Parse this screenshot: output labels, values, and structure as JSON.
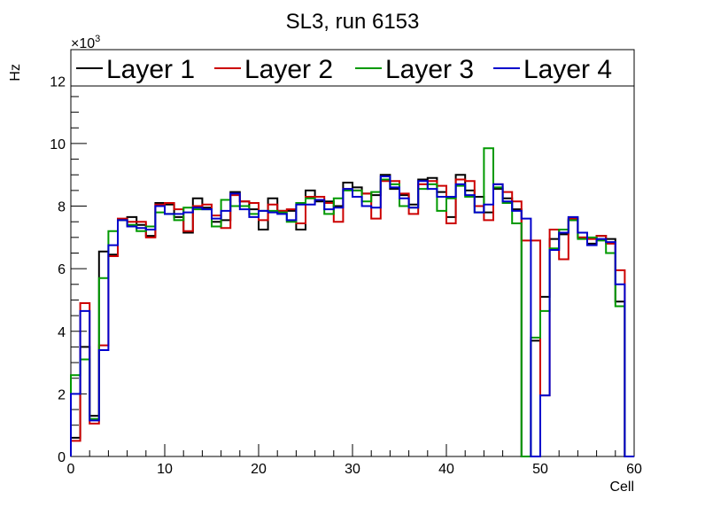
{
  "chart_data": {
    "type": "histogram-step",
    "title": "SL3, run 6153",
    "xlabel": "Cell",
    "ylabel": "Hz",
    "y_exponent_label": "×10",
    "y_exponent_power": "3",
    "xlim": [
      0,
      60
    ],
    "ylim": [
      0,
      13000
    ],
    "x_ticks": [
      0,
      10,
      20,
      30,
      40,
      50,
      60
    ],
    "x_tick_labels": [
      "0",
      "10",
      "20",
      "30",
      "40",
      "50",
      "60"
    ],
    "y_ticks": [
      0,
      2000,
      4000,
      6000,
      8000,
      10000,
      12000
    ],
    "y_tick_labels": [
      "0",
      "2",
      "4",
      "6",
      "8",
      "10",
      "12"
    ],
    "legend_position": "top",
    "series": [
      {
        "name": "Layer 1",
        "color": "#000000",
        "values": [
          600,
          3500,
          1300,
          6550,
          6450,
          7550,
          7650,
          7400,
          7050,
          8100,
          8050,
          7650,
          7150,
          8250,
          7950,
          7500,
          7550,
          8450,
          8150,
          7900,
          7250,
          8250,
          7850,
          7850,
          7250,
          8500,
          8150,
          8150,
          8000,
          8750,
          8600,
          8400,
          8350,
          9000,
          8550,
          8350,
          8050,
          8850,
          8900,
          8450,
          7650,
          9000,
          8500,
          8300,
          7800,
          8550,
          8250,
          7900,
          0,
          3700,
          5100,
          6950,
          7100,
          7550,
          7000,
          6800,
          7050,
          6950,
          4950,
          0
        ]
      },
      {
        "name": "Layer 2",
        "color": "#cc0000",
        "values": [
          500,
          4900,
          1050,
          3550,
          6400,
          7600,
          7500,
          7500,
          7000,
          8050,
          8100,
          7900,
          7200,
          8000,
          8050,
          7700,
          7300,
          8350,
          8150,
          8100,
          7550,
          8050,
          7850,
          7900,
          7450,
          8300,
          8300,
          8100,
          7500,
          8550,
          8500,
          8400,
          7600,
          8800,
          8800,
          8400,
          7750,
          8700,
          8800,
          8650,
          7450,
          8850,
          8800,
          8000,
          7550,
          8700,
          8450,
          8150,
          6900,
          6900,
          1950,
          7250,
          6300,
          7600,
          7000,
          6950,
          7050,
          6800,
          5950,
          0
        ]
      },
      {
        "name": "Layer 3",
        "color": "#009900",
        "values": [
          2600,
          3100,
          1200,
          5700,
          7200,
          7550,
          7400,
          7200,
          7350,
          7800,
          7750,
          7550,
          7950,
          7900,
          7900,
          7350,
          8200,
          8000,
          8000,
          7750,
          7850,
          7850,
          7800,
          7500,
          8100,
          8250,
          8200,
          7750,
          8250,
          8500,
          8500,
          8150,
          8450,
          8850,
          8700,
          8000,
          7950,
          8550,
          8700,
          7850,
          8250,
          8650,
          8300,
          7800,
          9850,
          8600,
          8100,
          7450,
          0,
          3800,
          4650,
          6650,
          7250,
          7550,
          6950,
          7000,
          6900,
          6500,
          4800,
          0
        ]
      },
      {
        "name": "Layer 4",
        "color": "#0000cc",
        "values": [
          2000,
          4650,
          1150,
          3400,
          6750,
          7550,
          7350,
          7300,
          7250,
          8000,
          7750,
          7750,
          7800,
          7950,
          7900,
          7600,
          7850,
          8400,
          7900,
          7650,
          7850,
          7800,
          7750,
          7550,
          8050,
          8050,
          8200,
          7900,
          7950,
          8550,
          8300,
          8000,
          7950,
          8950,
          8600,
          8250,
          7950,
          8800,
          8550,
          8300,
          8300,
          8700,
          8350,
          7800,
          8050,
          8700,
          8150,
          7850,
          7600,
          0,
          1950,
          6600,
          7150,
          7650,
          7150,
          6750,
          6950,
          6850,
          5500,
          0
        ]
      }
    ]
  }
}
